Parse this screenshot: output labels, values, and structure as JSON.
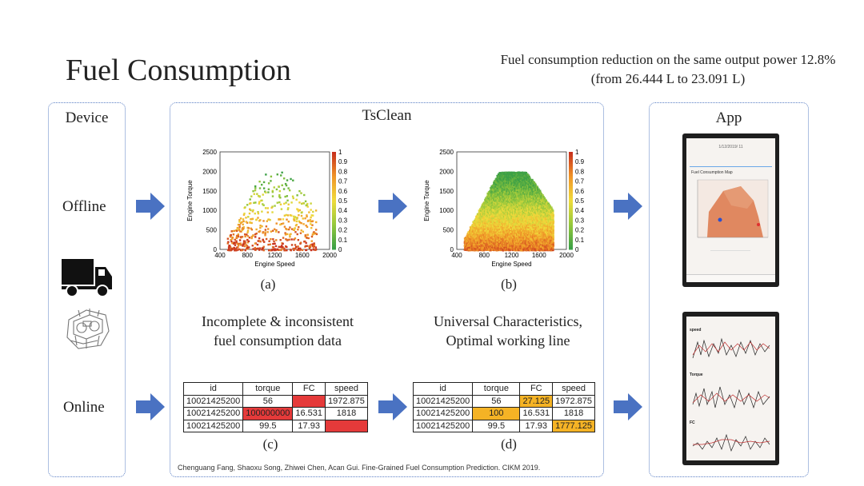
{
  "title": "Fuel Consumption",
  "subtitle": "Fuel consumption reduction on the same output power 12.8% (from 26.444 L to 23.091 L)",
  "panels": {
    "device": "Device",
    "tsclean": "TsClean",
    "app": "App"
  },
  "rows": {
    "offline": "Offline",
    "online": "Online"
  },
  "plots": {
    "label_a": "(a)",
    "label_b": "(b)",
    "label_c": "(c)",
    "label_d": "(d)",
    "ylabel": "Engine Torque",
    "xlabel": "Engine Speed",
    "xticks": [
      "400",
      "800",
      "1200",
      "1600",
      "2000"
    ],
    "yticks": [
      "0",
      "500",
      "1000",
      "1500",
      "2000",
      "2500"
    ],
    "cbticks": [
      "0",
      "0.1",
      "0.2",
      "0.3",
      "0.4",
      "0.5",
      "0.6",
      "0.7",
      "0.8",
      "0.9",
      "1"
    ]
  },
  "captions": {
    "incomplete_line1": "Incomplete & inconsistent",
    "incomplete_line2": "fuel consumption data",
    "universal_line1": "Universal Characteristics,",
    "universal_line2": "Optimal working line"
  },
  "table_c": {
    "headers": [
      "id",
      "torque",
      "FC",
      "speed"
    ],
    "rows": [
      [
        "10021425200",
        "56",
        "",
        "1972.875"
      ],
      [
        "10021425200",
        "100000000",
        "16.531",
        "1818"
      ],
      [
        "10021425200",
        "99.5",
        "17.93",
        ""
      ]
    ]
  },
  "table_d": {
    "headers": [
      "id",
      "torque",
      "FC",
      "speed"
    ],
    "rows": [
      [
        "10021425200",
        "56",
        "27.125",
        "1972.875"
      ],
      [
        "10021425200",
        "100",
        "16.531",
        "1818"
      ],
      [
        "10021425200",
        "99.5",
        "17.93",
        "1777.125"
      ]
    ]
  },
  "citation": "Chenguang Fang, Shaoxu Song, Zhiwei Chen, Acan Gui. Fine-Grained Fuel Consumption Prediction. CIKM 2019.",
  "phone1": {
    "header": "1/12/2019/ 11",
    "tab_label": "Fuel Consumption Map"
  },
  "phone2": {
    "label_speed": "speed",
    "label_torque": "Torque",
    "label_fc": "FC"
  },
  "colors": {
    "panel_border": "#5b7fc4",
    "arrow": "#4a72c2",
    "cell_red": "#e53a3a",
    "cell_orange": "#f5b325"
  }
}
